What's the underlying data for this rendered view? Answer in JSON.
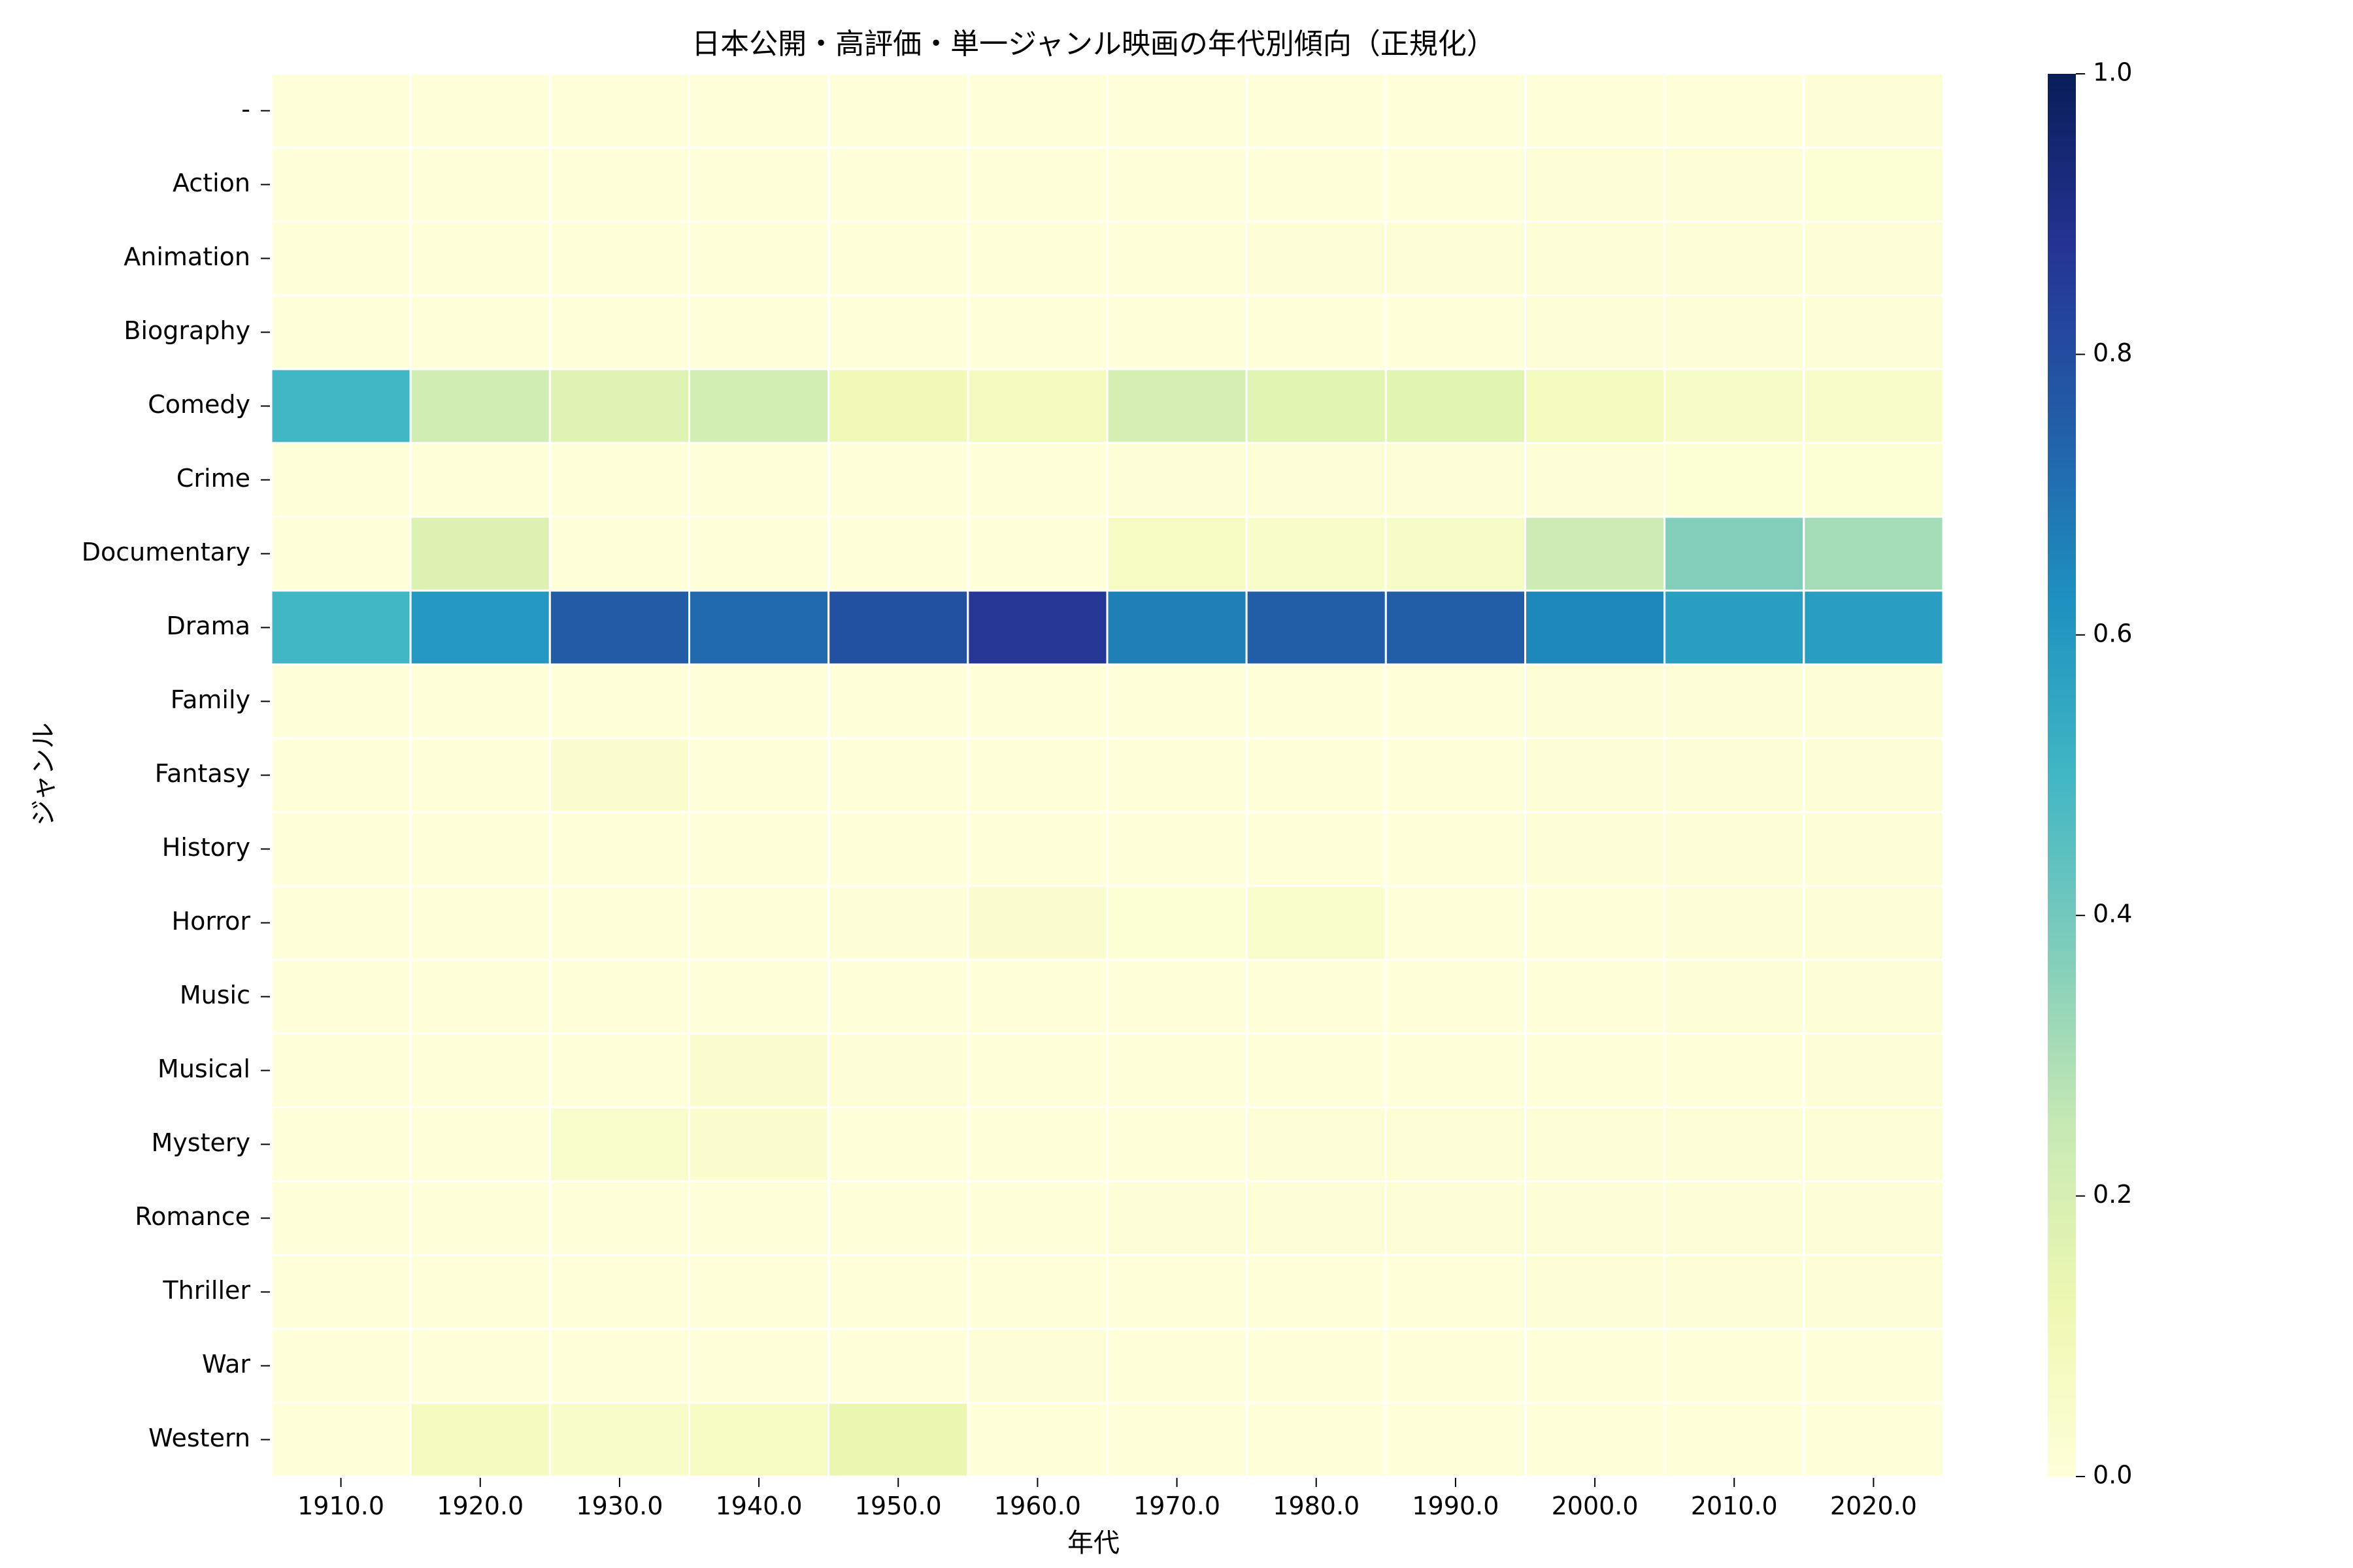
{
  "chart_data": {
    "type": "heatmap",
    "title": "日本公開・高評価・単一ジャンル映画の年代別傾向（正規化）",
    "xlabel": "年代",
    "ylabel": "ジャンル",
    "x": [
      "1910.0",
      "1920.0",
      "1930.0",
      "1940.0",
      "1950.0",
      "1960.0",
      "1970.0",
      "1980.0",
      "1990.0",
      "2000.0",
      "2010.0",
      "2020.0"
    ],
    "y": [
      "-",
      "Action",
      "Animation",
      "Biography",
      "Comedy",
      "Crime",
      "Documentary",
      "Drama",
      "Family",
      "Fantasy",
      "History",
      "Horror",
      "Music",
      "Musical",
      "Mystery",
      "Romance",
      "Thriller",
      "War",
      "Western"
    ],
    "values": [
      [
        0.0,
        0.0,
        0.0,
        0.0,
        0.0,
        0.0,
        0.0,
        0.0,
        0.0,
        0.0,
        0.0,
        0.01
      ],
      [
        0.0,
        0.0,
        0.0,
        0.0,
        0.0,
        0.0,
        0.0,
        0.0,
        0.0,
        0.01,
        0.01,
        0.02
      ],
      [
        0.0,
        0.0,
        0.0,
        0.0,
        0.0,
        0.0,
        0.0,
        0.01,
        0.01,
        0.01,
        0.01,
        0.01
      ],
      [
        0.0,
        0.0,
        0.0,
        0.0,
        0.0,
        0.0,
        0.0,
        0.0,
        0.0,
        0.01,
        0.01,
        0.01
      ],
      [
        0.5,
        0.22,
        0.17,
        0.21,
        0.1,
        0.08,
        0.2,
        0.16,
        0.16,
        0.08,
        0.06,
        0.05
      ],
      [
        0.0,
        0.0,
        0.0,
        0.0,
        0.0,
        0.0,
        0.01,
        0.01,
        0.01,
        0.01,
        0.02,
        0.02
      ],
      [
        0.0,
        0.18,
        0.0,
        0.0,
        0.0,
        0.0,
        0.07,
        0.05,
        0.06,
        0.23,
        0.37,
        0.31
      ],
      [
        0.5,
        0.6,
        0.76,
        0.72,
        0.79,
        0.87,
        0.67,
        0.75,
        0.75,
        0.65,
        0.58,
        0.58
      ],
      [
        0.0,
        0.0,
        0.0,
        0.0,
        0.0,
        0.0,
        0.0,
        0.0,
        0.0,
        0.01,
        0.01,
        0.01
      ],
      [
        0.0,
        0.0,
        0.03,
        0.0,
        0.0,
        0.0,
        0.0,
        0.0,
        0.0,
        0.01,
        0.01,
        0.01
      ],
      [
        0.0,
        0.0,
        0.0,
        0.0,
        0.0,
        0.0,
        0.0,
        0.0,
        0.0,
        0.01,
        0.01,
        0.01
      ],
      [
        0.0,
        0.0,
        0.0,
        0.0,
        0.01,
        0.03,
        0.02,
        0.04,
        0.0,
        0.0,
        0.01,
        0.01
      ],
      [
        0.0,
        0.0,
        0.0,
        0.0,
        0.0,
        0.0,
        0.0,
        0.0,
        0.0,
        0.0,
        0.01,
        0.01
      ],
      [
        0.0,
        0.0,
        0.0,
        0.03,
        0.01,
        0.0,
        0.0,
        0.0,
        0.0,
        0.0,
        0.0,
        0.01
      ],
      [
        0.0,
        0.0,
        0.04,
        0.03,
        0.0,
        0.0,
        0.0,
        0.01,
        0.01,
        0.01,
        0.01,
        0.01
      ],
      [
        0.0,
        0.0,
        0.0,
        0.0,
        0.0,
        0.0,
        0.01,
        0.01,
        0.01,
        0.01,
        0.01,
        0.01
      ],
      [
        0.0,
        0.0,
        0.0,
        0.0,
        0.0,
        0.0,
        0.0,
        0.0,
        0.0,
        0.01,
        0.01,
        0.01
      ],
      [
        0.0,
        0.0,
        0.0,
        0.0,
        0.0,
        0.01,
        0.0,
        0.0,
        0.0,
        0.0,
        0.0,
        0.0
      ],
      [
        0.0,
        0.08,
        0.05,
        0.07,
        0.13,
        0.0,
        0.0,
        0.0,
        0.0,
        0.0,
        0.0,
        0.0
      ]
    ],
    "colorbar": {
      "range": [
        0.0,
        1.0
      ],
      "ticks": [
        "0.0",
        "0.2",
        "0.4",
        "0.6",
        "0.8",
        "1.0"
      ],
      "colormap": "YlGnBu",
      "stops": [
        "#ffffd9",
        "#edf8b1",
        "#c7e9b4",
        "#7fcdbb",
        "#41b6c4",
        "#1d91c0",
        "#225ea8",
        "#253494",
        "#081d58"
      ]
    },
    "cell_border_color": "#ffffff",
    "grid": false
  }
}
